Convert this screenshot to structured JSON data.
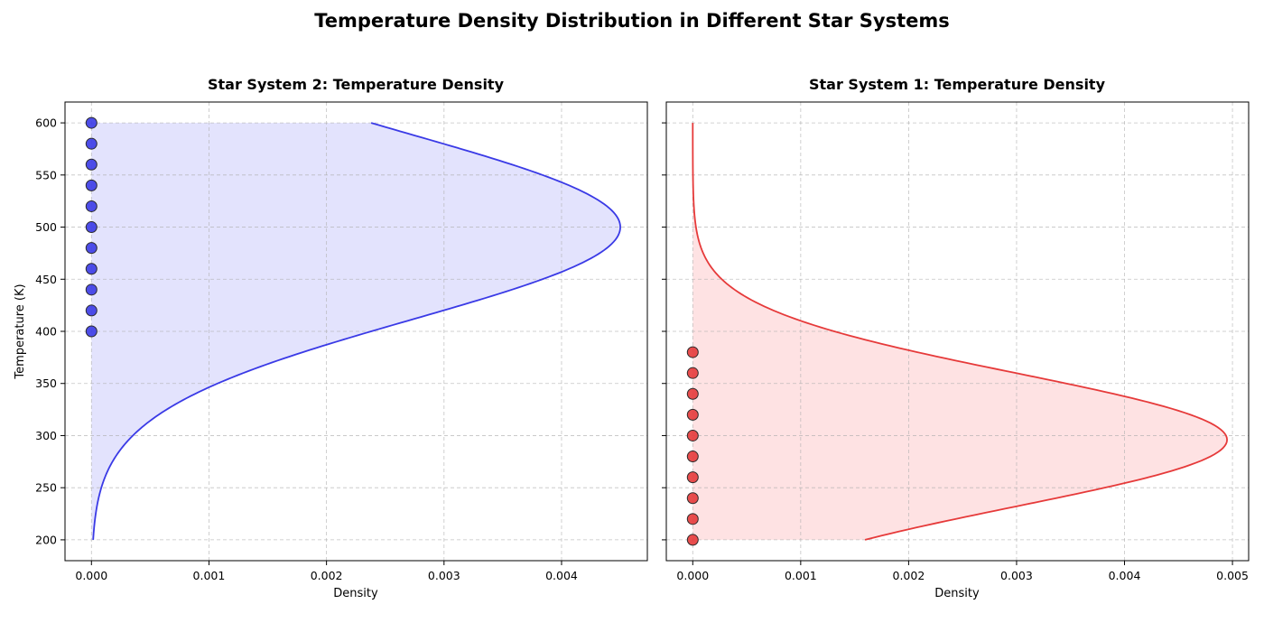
{
  "figure": {
    "title": "Temperature Density Distribution in Different Star Systems"
  },
  "chart_data": [
    {
      "type": "line",
      "orientation": "horizontal-density",
      "title": "Star System 2: Temperature Density",
      "xlabel": "Density",
      "ylabel": "Temperature (K)",
      "xlim": [
        -0.000225,
        0.00473
      ],
      "ylim": [
        180,
        620
      ],
      "xticks": [
        0.0,
        0.001,
        0.002,
        0.003,
        0.004
      ],
      "xtick_labels": [
        "0.000",
        "0.001",
        "0.002",
        "0.003",
        "0.004"
      ],
      "yticks": [
        200,
        250,
        300,
        350,
        400,
        450,
        500,
        550,
        600
      ],
      "ytick_labels": [
        "200",
        "250",
        "300",
        "350",
        "400",
        "450",
        "500",
        "550",
        "600"
      ],
      "grid": true,
      "color": "#3a3ae6",
      "fill_color": "#e3e3fd",
      "density": {
        "distribution": "normal",
        "mean": 500,
        "std": 88.6,
        "peak": 0.0045,
        "y_range": [
          200,
          600
        ]
      },
      "points": {
        "x": [
          0,
          0,
          0,
          0,
          0,
          0,
          0,
          0,
          0,
          0,
          0
        ],
        "y": [
          400,
          420,
          440,
          460,
          480,
          500,
          520,
          540,
          560,
          580,
          600
        ],
        "color": "#3a3ae6"
      }
    },
    {
      "type": "line",
      "orientation": "horizontal-density",
      "title": "Star System 1: Temperature Density",
      "xlabel": "Density",
      "ylabel": "",
      "xlim": [
        -0.000245,
        0.00515
      ],
      "ylim": [
        180,
        620
      ],
      "xticks": [
        0.0,
        0.001,
        0.002,
        0.003,
        0.004,
        0.005
      ],
      "xtick_labels": [
        "0.000",
        "0.001",
        "0.002",
        "0.003",
        "0.004",
        "0.005"
      ],
      "yticks": [
        200,
        250,
        300,
        350,
        400,
        450,
        500,
        550,
        600
      ],
      "ytick_labels": [],
      "grid": true,
      "color": "#e63a3a",
      "fill_color": "#fee2e3",
      "density": {
        "distribution": "normal",
        "mean": 296,
        "std": 63.8,
        "peak": 0.00495,
        "y_range": [
          200,
          600
        ]
      },
      "points": {
        "x": [
          0,
          0,
          0,
          0,
          0,
          0,
          0,
          0,
          0,
          0
        ],
        "y": [
          200,
          220,
          240,
          260,
          280,
          300,
          320,
          340,
          360,
          380
        ],
        "color": "#e63a3a"
      }
    }
  ]
}
